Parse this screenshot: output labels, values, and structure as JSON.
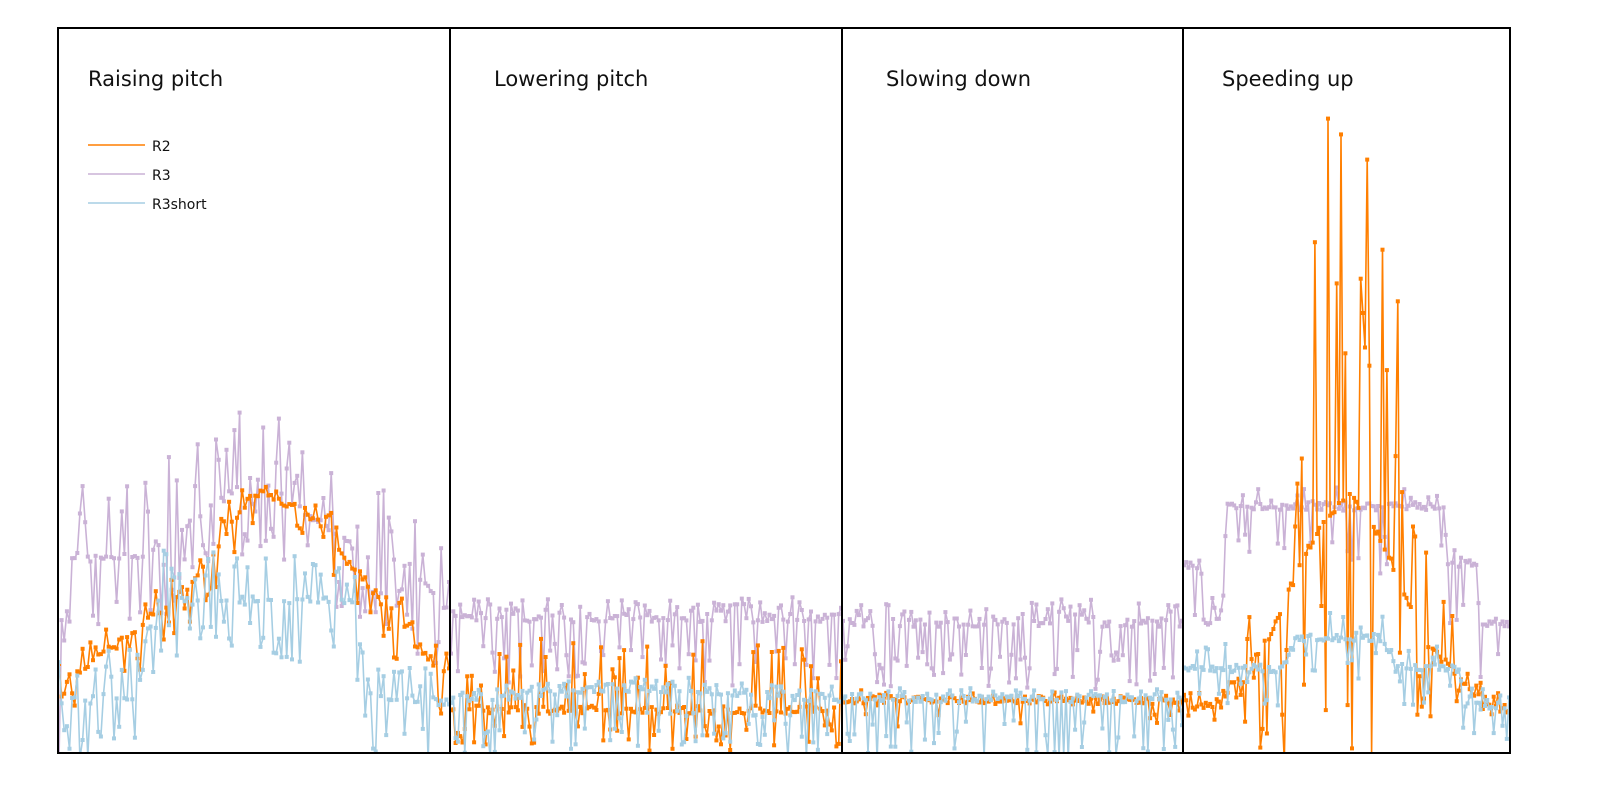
{
  "chart_data": {
    "type": "line",
    "title": "",
    "xlabel": "",
    "ylabel": "",
    "ylim": [
      0,
      100
    ],
    "grid": false,
    "legend": {
      "placement": "top-left",
      "entries": [
        {
          "name": "R2",
          "color": "#ff7f00"
        },
        {
          "name": "R3",
          "color": "#cab2d6"
        },
        {
          "name": "R3short",
          "color": "#a6cee3"
        }
      ]
    },
    "panels": [
      {
        "title": "Raising pitch",
        "points": 150,
        "series": {
          "R3": {
            "base": [
              [
                0,
                6
              ],
              [
                0.03,
                27
              ],
              [
                0.2,
                27
              ],
              [
                0.5,
                38
              ],
              [
                0.8,
                27
              ],
              [
                0.9,
                26
              ],
              [
                1,
                19
              ]
            ],
            "spike_up": 9,
            "spike_down": 10,
            "spike_rate": 0.55
          },
          "R2": {
            "base": [
              [
                0,
                10
              ],
              [
                0.02,
                10
              ],
              [
                0.2,
                17
              ],
              [
                0.35,
                24
              ],
              [
                0.5,
                36
              ],
              [
                0.62,
                34
              ],
              [
                0.78,
                24
              ],
              [
                0.9,
                16
              ],
              [
                1,
                10
              ]
            ],
            "spike_up": 3,
            "spike_down": 5,
            "spike_rate": 0.45,
            "max": 56
          },
          "R3short": {
            "base": [
              [
                0,
                7
              ],
              [
                0.2,
                8
              ],
              [
                0.25,
                21
              ],
              [
                0.75,
                21
              ],
              [
                0.8,
                8
              ],
              [
                1,
                7
              ]
            ],
            "spike_up": 6,
            "spike_down": 8,
            "spike_rate": 0.5
          }
        }
      },
      {
        "title": "Lowering pitch",
        "points": 170,
        "series": {
          "R3": {
            "base": [
              [
                0,
                18.6
              ],
              [
                1,
                18.6
              ]
            ],
            "spike_up": 2,
            "spike_down": 8.5,
            "spike_rate": 0.6
          },
          "R2": {
            "base": [
              [
                0,
                6
              ],
              [
                1,
                6
              ]
            ],
            "spike_up": 8,
            "spike_down": 5,
            "spike_rate": 0.45
          },
          "R3short": {
            "base": [
              [
                0,
                7.5
              ],
              [
                0.5,
                9
              ],
              [
                1,
                7.5
              ]
            ],
            "spike_up": 1,
            "spike_down": 7.5,
            "spike_rate": 0.65
          }
        }
      },
      {
        "title": "Slowing down",
        "points": 150,
        "series": {
          "R3": {
            "base": [
              [
                0,
                18
              ],
              [
                1,
                18
              ]
            ],
            "spike_up": 2.5,
            "spike_down": 8.5,
            "spike_rate": 0.55
          },
          "R2": {
            "base": [
              [
                0,
                7.3
              ],
              [
                1,
                7.3
              ]
            ],
            "spike_up": 0.8,
            "spike_down": 3,
            "spike_rate": 0.2
          },
          "R3short": {
            "base": [
              [
                0,
                7.6
              ],
              [
                1,
                7.6
              ]
            ],
            "spike_up": 0.8,
            "spike_down": 7.6,
            "spike_rate": 0.5
          }
        }
      },
      {
        "title": "Speeding up",
        "points": 150,
        "series": {
          "R3": {
            "base": [
              [
                0,
                26
              ],
              [
                0.05,
                26
              ],
              [
                0.06,
                18
              ],
              [
                0.12,
                18
              ],
              [
                0.13,
                34
              ],
              [
                0.8,
                34
              ],
              [
                0.81,
                26
              ],
              [
                0.9,
                26
              ],
              [
                0.91,
                18
              ],
              [
                1,
                18
              ]
            ],
            "spike_up": 2.5,
            "spike_down": 8,
            "spike_rate": 0.3
          },
          "R2": {
            "base": [
              [
                0,
                6
              ],
              [
                0.1,
                7
              ],
              [
                0.25,
                15
              ],
              [
                0.4,
                30
              ],
              [
                0.5,
                36
              ],
              [
                0.6,
                30
              ],
              [
                0.75,
                15
              ],
              [
                0.9,
                8
              ],
              [
                1,
                6
              ]
            ],
            "spike_up": 50,
            "spike_down": 30,
            "spike_rate": 0.5,
            "max": 100
          },
          "R3short": {
            "base": [
              [
                0,
                11.7
              ],
              [
                0.3,
                11.7
              ],
              [
                0.35,
                16
              ],
              [
                0.6,
                16
              ],
              [
                0.65,
                11.7
              ],
              [
                0.85,
                11.7
              ],
              [
                0.86,
                6.5
              ],
              [
                1,
                6.5
              ]
            ],
            "spike_up": 3,
            "spike_down": 5,
            "spike_rate": 0.35
          }
        }
      }
    ]
  }
}
